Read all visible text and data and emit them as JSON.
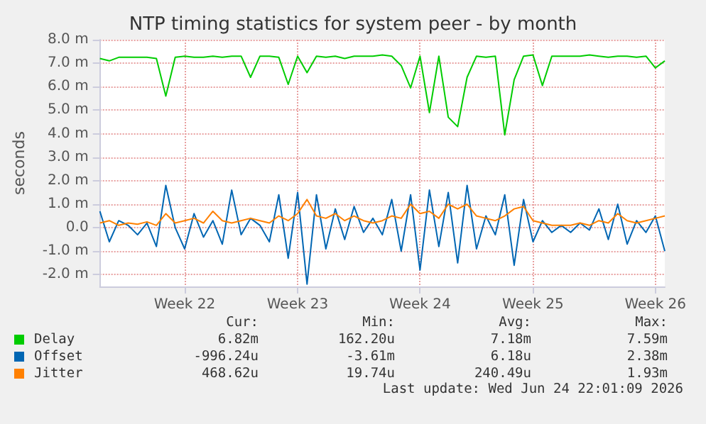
{
  "chart_data": {
    "type": "line",
    "title": "NTP timing statistics for system peer - by month",
    "ylabel": "seconds",
    "categories": [
      null,
      null,
      null,
      null,
      null,
      null,
      null,
      null,
      null,
      "Week 22",
      null,
      null,
      null,
      null,
      null,
      null,
      null,
      null,
      null,
      null,
      null,
      "Week 23",
      null,
      null,
      null,
      null,
      null,
      null,
      null,
      null,
      null,
      null,
      null,
      null,
      "Week 24",
      null,
      null,
      null,
      null,
      null,
      null,
      null,
      null,
      null,
      null,
      null,
      "Week 25",
      null,
      null,
      null,
      null,
      null,
      null,
      null,
      null,
      null,
      null,
      null,
      null,
      "Week 26",
      null
    ],
    "series": [
      {
        "name": "Delay",
        "color": "#00cc00",
        "values": [
          7.2,
          7.1,
          7.25,
          7.25,
          7.25,
          7.25,
          7.2,
          5.6,
          7.25,
          7.3,
          7.25,
          7.25,
          7.3,
          7.25,
          7.3,
          7.3,
          6.4,
          7.3,
          7.3,
          7.25,
          6.1,
          7.3,
          6.6,
          7.3,
          7.25,
          7.3,
          7.2,
          7.3,
          7.3,
          7.3,
          7.35,
          7.3,
          6.9,
          5.95,
          7.3,
          4.9,
          7.3,
          4.7,
          4.3,
          6.4,
          7.3,
          7.25,
          7.3,
          3.95,
          6.3,
          7.3,
          7.35,
          6.05,
          7.3,
          7.3,
          7.3,
          7.3,
          7.35,
          7.3,
          7.25,
          7.3,
          7.3,
          7.25,
          7.3,
          6.8,
          7.1
        ]
      },
      {
        "name": "Offset",
        "color": "#0066b3",
        "values": [
          0.7,
          -0.6,
          0.3,
          0.1,
          -0.3,
          0.2,
          -0.8,
          1.8,
          0.0,
          -0.9,
          0.6,
          -0.4,
          0.3,
          -0.7,
          1.6,
          -0.3,
          0.4,
          0.1,
          -0.6,
          1.4,
          -1.3,
          1.5,
          -2.4,
          1.4,
          -0.9,
          0.8,
          -0.5,
          0.9,
          -0.2,
          0.4,
          -0.3,
          1.2,
          -1.0,
          1.4,
          -1.8,
          1.6,
          -0.8,
          1.5,
          -1.5,
          1.8,
          -0.9,
          0.5,
          -0.3,
          1.4,
          -1.6,
          1.2,
          -0.6,
          0.3,
          -0.2,
          0.1,
          -0.2,
          0.2,
          -0.1,
          0.8,
          -0.5,
          1.0,
          -0.7,
          0.3,
          -0.2,
          0.5,
          -1.0
        ]
      },
      {
        "name": "Jitter",
        "color": "#ff8000",
        "values": [
          0.2,
          0.3,
          0.1,
          0.2,
          0.15,
          0.25,
          0.1,
          0.6,
          0.2,
          0.3,
          0.4,
          0.2,
          0.7,
          0.3,
          0.2,
          0.3,
          0.4,
          0.3,
          0.2,
          0.5,
          0.3,
          0.6,
          1.2,
          0.5,
          0.4,
          0.6,
          0.3,
          0.5,
          0.3,
          0.2,
          0.3,
          0.5,
          0.4,
          1.0,
          0.6,
          0.7,
          0.4,
          1.0,
          0.8,
          1.0,
          0.5,
          0.4,
          0.3,
          0.5,
          0.8,
          0.9,
          0.3,
          0.2,
          0.1,
          0.1,
          0.1,
          0.2,
          0.1,
          0.3,
          0.2,
          0.6,
          0.3,
          0.2,
          0.3,
          0.4,
          0.5
        ]
      }
    ],
    "ylim": [
      -2.5,
      8.0
    ],
    "yticks": [
      {
        "value": -2,
        "label": "-2.0 m"
      },
      {
        "value": -1,
        "label": "-1.0 m"
      },
      {
        "value": 0,
        "label": "0.0"
      },
      {
        "value": 1,
        "label": "1.0 m"
      },
      {
        "value": 2,
        "label": "2.0 m"
      },
      {
        "value": 3,
        "label": "3.0 m"
      },
      {
        "value": 4,
        "label": "4.0 m"
      },
      {
        "value": 5,
        "label": "5.0 m"
      },
      {
        "value": 6,
        "label": "6.0 m"
      },
      {
        "value": 7,
        "label": "7.0 m"
      },
      {
        "value": 8,
        "label": "8.0 m"
      }
    ],
    "grid": true,
    "legend": "bottom",
    "marker": "none",
    "line_style": "solid",
    "annotations": [
      "Cur:    Min:    Avg:    Max:",
      "6.82m    162.20u    7.18m    7.59m",
      "-996.24u    -3.61m    6.18u    2.38m",
      "468.62u    19.74u    240.49u    1.93m",
      "Last update: Wed Jun 24 22:01:09 2026"
    ]
  }
}
